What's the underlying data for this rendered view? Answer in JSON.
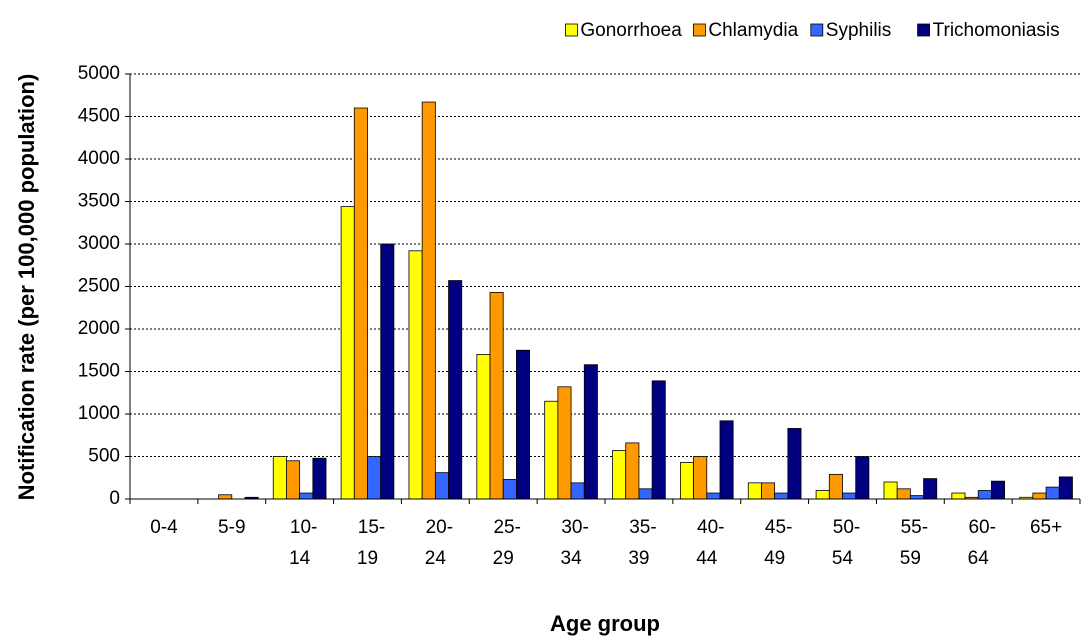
{
  "chart_data": {
    "type": "bar",
    "xlabel": "Age group",
    "ylabel": "Notification rate (per 100,000 population)",
    "categories": [
      "0-4",
      "5-9",
      "10-14",
      "15-19",
      "20-24",
      "25-29",
      "30-34",
      "35-39",
      "40-44",
      "45-49",
      "50-54",
      "55-59",
      "60-64",
      "65+"
    ],
    "series": [
      {
        "name": "Gonorrhoea",
        "color": "#ffff00",
        "values": [
          0,
          0,
          500,
          3440,
          2920,
          1700,
          1150,
          570,
          430,
          190,
          100,
          200,
          70,
          20
        ]
      },
      {
        "name": "Chlamydia",
        "color": "#ff9900",
        "values": [
          0,
          50,
          450,
          4600,
          4670,
          2430,
          1320,
          660,
          500,
          190,
          290,
          120,
          20,
          70
        ]
      },
      {
        "name": "Syphilis",
        "color": "#3366ff",
        "values": [
          0,
          0,
          70,
          500,
          310,
          230,
          190,
          120,
          70,
          70,
          70,
          40,
          100,
          140
        ]
      },
      {
        "name": "Trichomoniasis",
        "color": "#000080",
        "values": [
          0,
          20,
          480,
          3000,
          2570,
          1750,
          1580,
          1390,
          920,
          830,
          500,
          240,
          210,
          260
        ]
      }
    ],
    "ylim": [
      0,
      5000
    ],
    "yticks": [
      0,
      500,
      1000,
      1500,
      2000,
      2500,
      3000,
      3500,
      4000,
      4500,
      5000
    ],
    "grid": true,
    "legend": "top-right"
  }
}
